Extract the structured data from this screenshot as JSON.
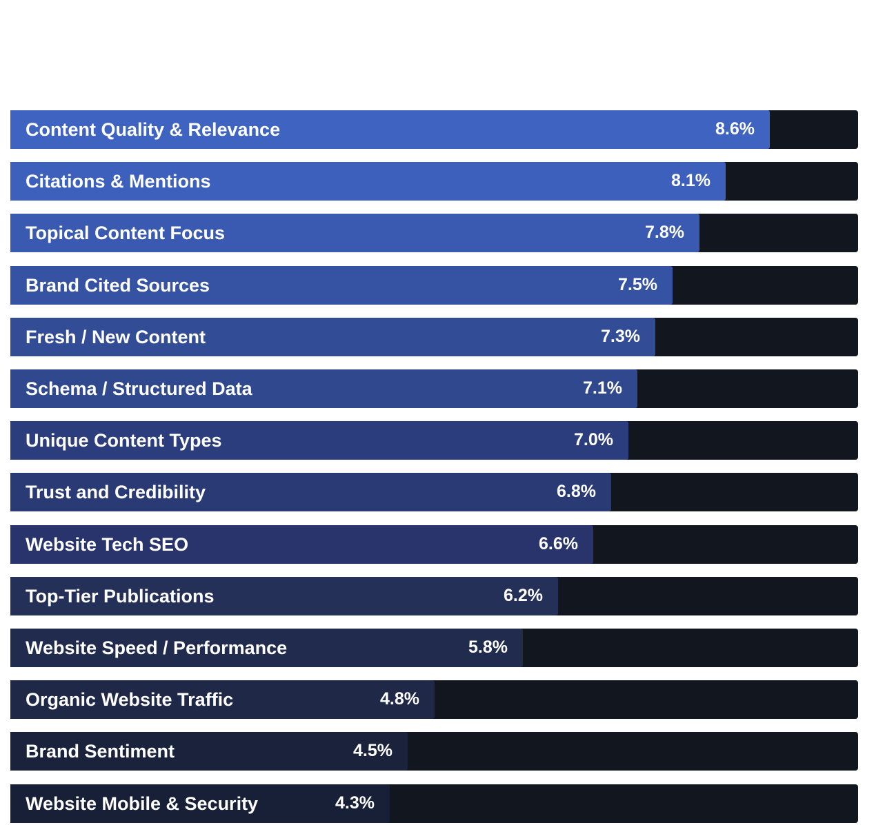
{
  "chart_data": {
    "type": "bar",
    "orientation": "horizontal",
    "title": "",
    "xlabel": "",
    "ylabel": "",
    "xlim": [
      0,
      9.6
    ],
    "grid": false,
    "legend": "none",
    "categories": [
      "Content Quality & Relevance",
      "Citations & Mentions",
      "Topical Content Focus",
      "Brand Cited Sources",
      "Fresh / New Content",
      "Schema / Structured Data",
      "Unique Content Types",
      "Trust and Credibility",
      "Website Tech SEO",
      "Top-Tier Publications",
      "Website Speed / Performance",
      "Organic Website Traffic",
      "Brand Sentiment",
      "Website Mobile & Security"
    ],
    "values": [
      8.6,
      8.1,
      7.8,
      7.5,
      7.3,
      7.1,
      7.0,
      6.8,
      6.6,
      6.2,
      5.8,
      4.8,
      4.5,
      4.3
    ],
    "value_labels": [
      "8.6%",
      "8.1%",
      "7.8%",
      "7.5%",
      "7.3%",
      "7.1%",
      "7.0%",
      "6.8%",
      "6.6%",
      "6.2%",
      "5.8%",
      "4.8%",
      "4.5%",
      "4.3%"
    ],
    "bar_colors": [
      "#3f63c0",
      "#3d60bc",
      "#3a59b0",
      "#3552a3",
      "#324c96",
      "#30488d",
      "#2b3d7c",
      "#2a3a75",
      "#28346b",
      "#253059",
      "#212b4d",
      "#1f2947",
      "#1b233c",
      "#182038"
    ],
    "track_color": "#12161f",
    "text_color": "#ffffff"
  }
}
